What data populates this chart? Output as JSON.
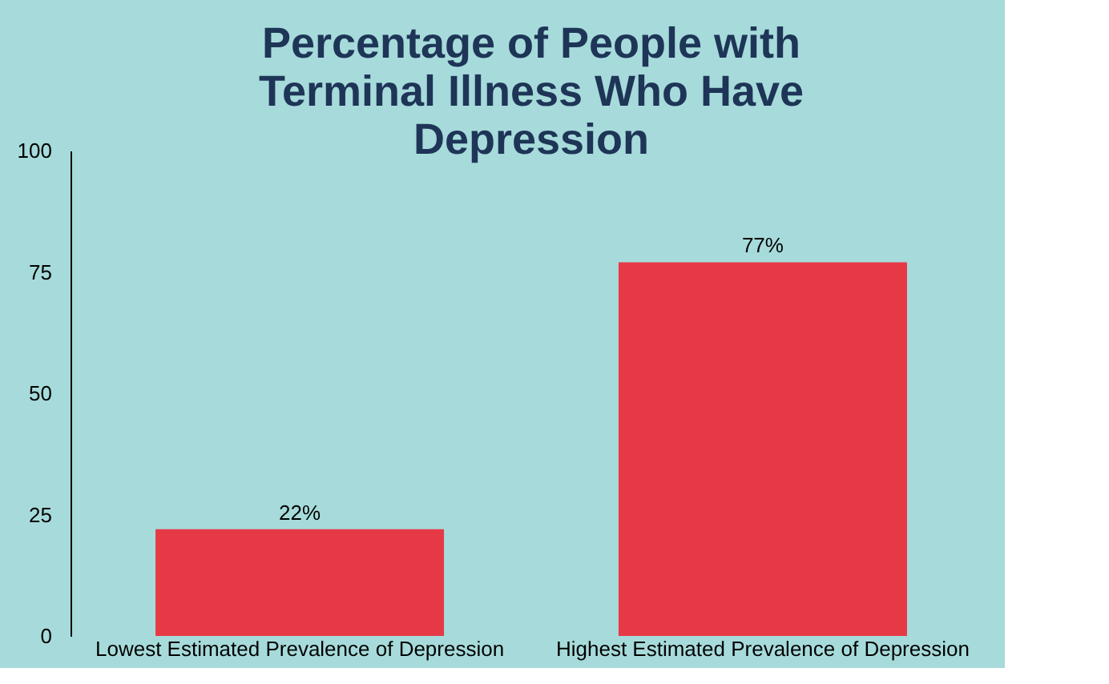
{
  "chart_data": {
    "type": "bar",
    "title": "Percentage of People with Terminal Illness Who Have Depression",
    "categories": [
      "Lowest Estimated Prevalence of Depression",
      "Highest Estimated Prevalence of Depression"
    ],
    "values": [
      22,
      77
    ],
    "color": "#e63946",
    "value_labels": [
      "22%",
      "77%"
    ],
    "ylim": [
      0,
      100
    ],
    "yticks": [
      0,
      25,
      50,
      75,
      100
    ],
    "grid": false
  }
}
